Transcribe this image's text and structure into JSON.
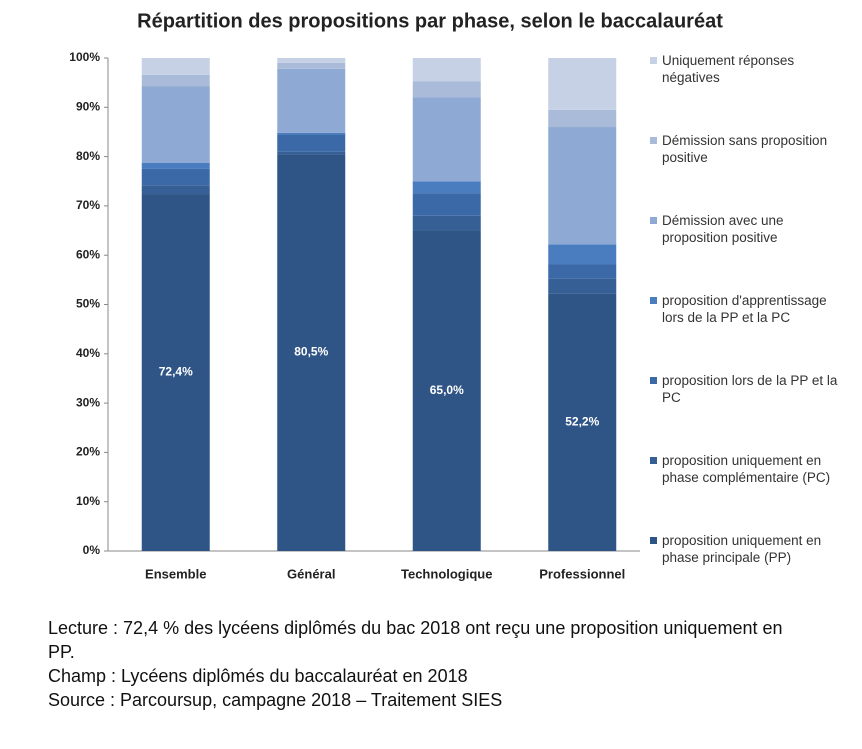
{
  "chart_data": {
    "type": "stacked-bar",
    "title": "Répartition des propositions par phase, selon le baccalauréat",
    "categories": [
      "Ensemble",
      "Général",
      "Technologique",
      "Professionnel"
    ],
    "series": [
      {
        "name": "proposition uniquement en phase principale (PP)",
        "color": "#2f5587",
        "values": [
          72.4,
          80.5,
          65.0,
          52.2
        ],
        "value_labels": [
          "72,4%",
          "80,5%",
          "65,0%",
          "52,2%"
        ]
      },
      {
        "name": "proposition uniquement en phase complémentaire (PC)",
        "color": "#365f96",
        "values": [
          1.8,
          0.5,
          3.0,
          3.0
        ]
      },
      {
        "name": "proposition lors de la PP et la PC",
        "color": "#3b69a7",
        "values": [
          3.3,
          3.5,
          4.5,
          3.0
        ]
      },
      {
        "name": "proposition d'apprentissage lors de la PP et la PC",
        "color": "#4a7cc0",
        "values": [
          1.2,
          0.3,
          2.5,
          4.0
        ]
      },
      {
        "name": "Démission avec une proposition positive",
        "color": "#8ea9d4",
        "values": [
          15.6,
          13.0,
          17.0,
          23.8
        ]
      },
      {
        "name": "Démission sans proposition positive",
        "color": "#aabbd9",
        "values": [
          2.3,
          1.2,
          3.3,
          3.5
        ]
      },
      {
        "name": "Uniquement réponses négatives",
        "color": "#c6d1e6",
        "values": [
          3.4,
          1.0,
          4.7,
          10.5
        ]
      }
    ],
    "ylim": [
      0,
      100
    ],
    "yticks": [
      {
        "value": 0,
        "label": "0%"
      },
      {
        "value": 10,
        "label": "10%"
      },
      {
        "value": 20,
        "label": "20%"
      },
      {
        "value": 30,
        "label": "30%"
      },
      {
        "value": 40,
        "label": "40%"
      },
      {
        "value": 50,
        "label": "50%"
      },
      {
        "value": 60,
        "label": "60%"
      },
      {
        "value": 70,
        "label": "70%"
      },
      {
        "value": 80,
        "label": "80%"
      },
      {
        "value": 90,
        "label": "90%"
      },
      {
        "value": 100,
        "label": "100%"
      }
    ],
    "notes": [
      "Lecture : 72,4 % des lycéens diplômés du bac 2018 ont reçu une proposition uniquement en PP.",
      "Champ : Lycéens diplômés du baccalauréat en 2018",
      "Source : Parcoursup, campagne 2018 – Traitement SIES"
    ]
  }
}
